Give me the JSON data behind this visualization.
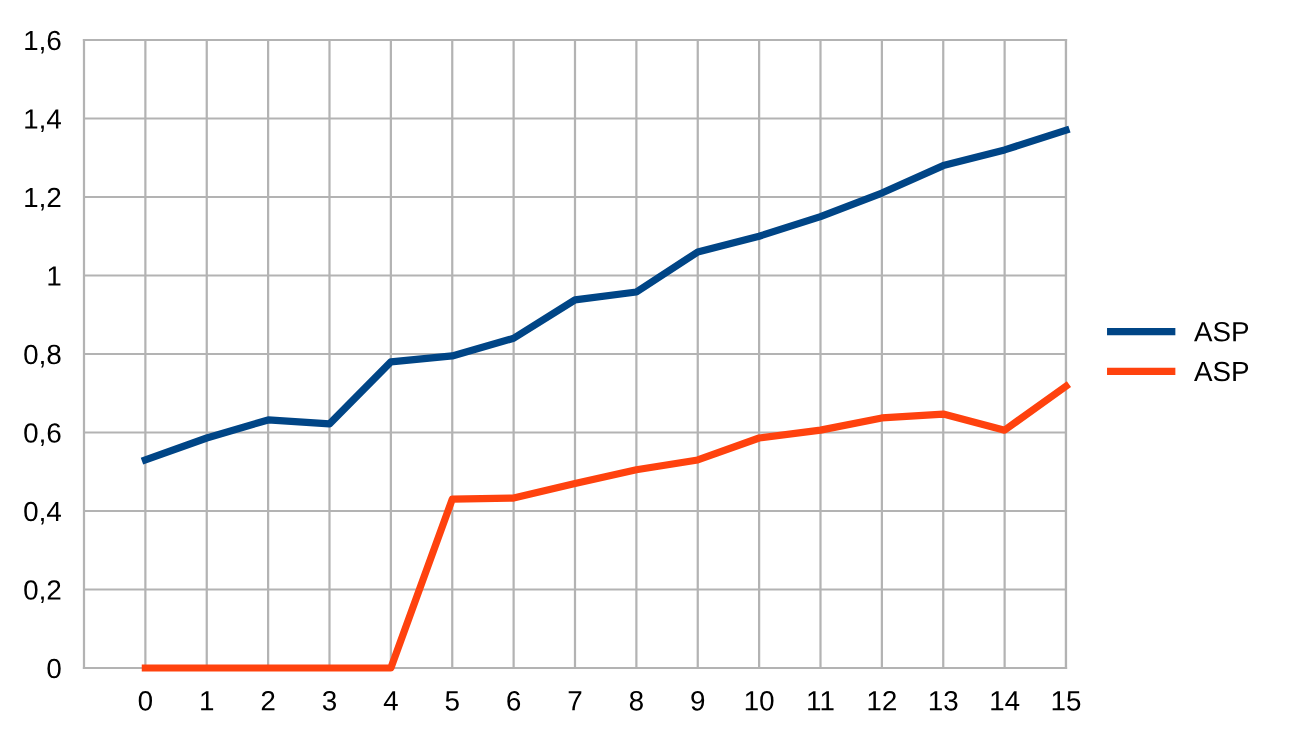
{
  "chart_data": {
    "type": "line",
    "x": [
      0,
      1,
      2,
      3,
      4,
      5,
      6,
      7,
      8,
      9,
      10,
      11,
      12,
      13,
      14,
      15
    ],
    "series": [
      {
        "name": "ASP",
        "color": "#004586",
        "values": [
          0.53,
          0.586,
          0.632,
          0.622,
          0.78,
          0.795,
          0.84,
          0.938,
          0.958,
          1.06,
          1.1,
          1.15,
          1.21,
          1.28,
          1.32,
          1.37
        ]
      },
      {
        "name": "ASP",
        "color": "#ff420e",
        "values": [
          0,
          0,
          0,
          0,
          0,
          0.43,
          0.433,
          0.47,
          0.505,
          0.53,
          0.586,
          0.606,
          0.637,
          0.647,
          0.606,
          0.718
        ]
      }
    ],
    "xlim": [
      -1,
      15
    ],
    "xticks": [
      0,
      1,
      2,
      3,
      4,
      5,
      6,
      7,
      8,
      9,
      10,
      11,
      12,
      13,
      14,
      15
    ],
    "ylim": [
      0,
      1.6
    ],
    "yticks": [
      0,
      {
        "value": 0.2,
        "label": "0,2"
      },
      {
        "value": 0.4,
        "label": "0,4"
      },
      {
        "value": 0.6,
        "label": "0,6"
      },
      {
        "value": 0.8,
        "label": "0,8"
      },
      1,
      {
        "value": 1.2,
        "label": "1,2"
      },
      {
        "value": 1.4,
        "label": "1,4"
      },
      {
        "value": 1.6,
        "label": "1,6"
      }
    ],
    "grid": true,
    "legend": "right",
    "marker": "none",
    "line_style": "solid"
  }
}
